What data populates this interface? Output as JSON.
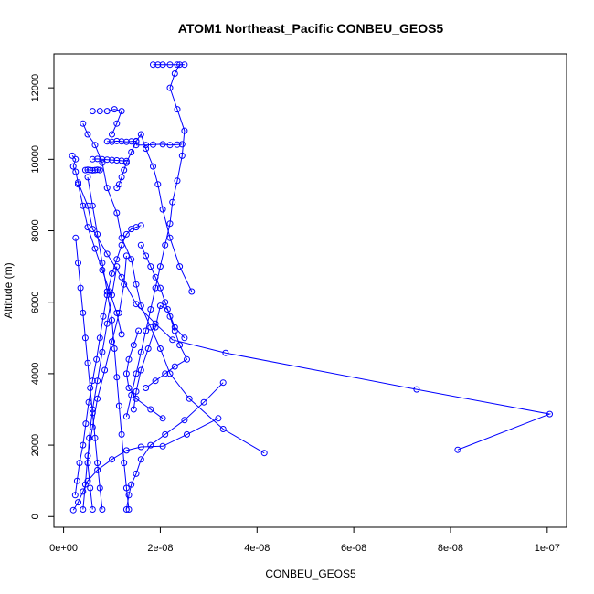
{
  "chart_data": {
    "type": "scatter",
    "title": "ATOM1 Northeast_Pacific CONBEU_GEOS5",
    "xlabel": "CONBEU_GEOS5",
    "ylabel": "Altitude (m)",
    "xlim": [
      -2e-09,
      1.04e-07
    ],
    "ylim": [
      -300,
      12950
    ],
    "x_ticks": [
      0,
      2e-08,
      4e-08,
      6e-08,
      8e-08,
      1e-07
    ],
    "x_tick_labels": [
      "0e+00",
      "2e-08",
      "4e-08",
      "6e-08",
      "8e-08",
      "1e-07"
    ],
    "y_ticks": [
      0,
      2000,
      4000,
      6000,
      8000,
      10000,
      12000
    ],
    "y_tick_labels": [
      "0",
      "2000",
      "4000",
      "6000",
      "8000",
      "10000",
      "12000"
    ],
    "grid": false,
    "legend": "none",
    "color": "#0000ff",
    "marker": "open-circle",
    "series": [
      {
        "x": [
          8.15e-08,
          1.005e-07,
          7.3e-08,
          3.35e-08,
          2.25e-08,
          1.9e-08,
          1.5e-08,
          1.2e-08,
          9e-09,
          6e-09,
          5e-09,
          3e-09,
          2.5e-09,
          2e-09,
          2.5e-09,
          1.8e-09
        ],
        "y": [
          1870,
          2870,
          3560,
          4580,
          4950,
          5400,
          5950,
          6700,
          7350,
          8050,
          8700,
          9350,
          9650,
          9800,
          10000,
          10100
        ]
      },
      {
        "x": [
          4.15e-08,
          3.3e-08,
          2.6e-08,
          2.2e-08,
          2e-08,
          1.8e-08,
          1.6e-08,
          1.5e-08,
          1.4e-08,
          1.2e-08,
          1.1e-08,
          9e-09,
          8e-09,
          6.5e-09,
          5e-09,
          4e-09
        ],
        "y": [
          1780,
          2450,
          3300,
          4000,
          4700,
          5300,
          5900,
          6500,
          7200,
          7800,
          8500,
          9200,
          9900,
          10400,
          10700,
          11000
        ]
      },
      {
        "x": [
          3.3e-08,
          2.9e-08,
          2.5e-08,
          2.1e-08,
          1.8e-08,
          1.6e-08,
          1.5e-08,
          1.4e-08,
          1.35e-08,
          1.3e-08
        ],
        "y": [
          3750,
          3200,
          2700,
          2300,
          2000,
          1600,
          1200,
          900,
          600,
          200
        ]
      },
      {
        "x": [
          2e-09,
          3e-09,
          4e-09,
          5e-09,
          7e-09,
          1e-08,
          1.3e-08,
          1.6e-08,
          2.05e-08,
          2.55e-08,
          3.2e-08
        ],
        "y": [
          180,
          400,
          700,
          1000,
          1300,
          1600,
          1850,
          1950,
          1970,
          2300,
          2750
        ]
      },
      {
        "x": [
          2.05e-08,
          1.8e-08,
          1.5e-08,
          1.35e-08,
          1.3e-08,
          1.35e-08,
          1.45e-08,
          1.55e-08
        ],
        "y": [
          2750,
          3000,
          3300,
          3600,
          4000,
          4400,
          4800,
          5200
        ]
      },
      {
        "x": [
          2.65e-08,
          2.4e-08,
          2.2e-08,
          2.05e-08,
          1.95e-08,
          1.85e-08,
          1.7e-08,
          1.6e-08,
          1.5e-08,
          1.4e-08,
          1.3e-08,
          1.25e-08,
          1.2e-08,
          1.15e-08,
          1.1e-08
        ],
        "y": [
          6300,
          7000,
          7800,
          8600,
          9300,
          9800,
          10300,
          10700,
          10500,
          10200,
          9900,
          9700,
          9500,
          9300,
          9200
        ]
      },
      {
        "x": [
          2.4e-09,
          2.8e-09,
          3.3e-09,
          4e-09,
          4.6e-09,
          5.2e-09,
          6e-09,
          6.8e-09,
          7.5e-09,
          8.2e-09,
          9e-09,
          1e-08,
          1.1e-08,
          1.2e-08,
          1.3e-08,
          1.4e-08,
          1.5e-08,
          1.6e-08
        ],
        "y": [
          600,
          1000,
          1500,
          2000,
          2600,
          3200,
          3800,
          4400,
          5000,
          5600,
          6200,
          6800,
          7200,
          7600,
          7900,
          8050,
          8100,
          8150
        ]
      },
      {
        "x": [
          1.35e-08,
          1.3e-08,
          1.25e-08,
          1.2e-08,
          1.15e-08,
          1.1e-08,
          1.05e-08,
          1e-08,
          9e-09,
          8e-09,
          7e-09,
          6e-09,
          5e-09
        ],
        "y": [
          200,
          800,
          1500,
          2300,
          3100,
          3900,
          4700,
          5500,
          6300,
          7100,
          7900,
          8700,
          9500
        ]
      },
      {
        "x": [
          6e-09,
          5.5e-09,
          5e-09,
          5.3e-09,
          6e-09,
          7e-09,
          8e-09,
          9e-09,
          1e-08,
          1.1e-08
        ],
        "y": [
          200,
          800,
          1500,
          2200,
          3000,
          3800,
          4600,
          5400,
          6200,
          7000
        ]
      },
      {
        "x": [
          4e-09,
          4.5e-09,
          5e-09,
          6e-09,
          7e-09,
          8.5e-09,
          1e-08,
          1.15e-08,
          1.25e-08,
          1.3e-08
        ],
        "y": [
          200,
          900,
          1700,
          2500,
          3300,
          4100,
          4900,
          5700,
          6500,
          7300
        ]
      },
      {
        "x": [
          1.85e-08,
          1.95e-08,
          2.05e-08,
          2.2e-08,
          2.35e-08,
          2.5e-08
        ],
        "y": [
          12650,
          12650,
          12650,
          12650,
          12650,
          12650
        ]
      },
      {
        "x": [
          1.5e-08,
          1.7e-08,
          1.85e-08,
          2.05e-08,
          2.2e-08,
          2.35e-08,
          2.45e-08
        ],
        "y": [
          10400,
          10400,
          10410,
          10420,
          10400,
          10410,
          10420
        ]
      },
      {
        "x": [
          6e-09,
          7e-09,
          8e-09,
          9e-09,
          1e-08,
          1.1e-08,
          1.2e-08,
          1.3e-08
        ],
        "y": [
          10000,
          10010,
          10000,
          9990,
          9980,
          9970,
          9960,
          9950
        ]
      },
      {
        "x": [
          4.5e-09,
          5e-09,
          5.5e-09,
          6e-09,
          6.5e-09,
          7e-09,
          7.5e-09
        ],
        "y": [
          9700,
          9710,
          9700,
          9690,
          9700,
          9710,
          9700
        ]
      },
      {
        "x": [
          9e-09,
          1e-08,
          1.1e-08,
          1.2e-08,
          1.3e-08,
          1.4e-08,
          1.5e-08
        ],
        "y": [
          10500,
          10490,
          10510,
          10500,
          10490,
          10500,
          10510
        ]
      },
      {
        "x": [
          6e-09,
          7.5e-09,
          9e-09,
          1.05e-08,
          1.2e-08,
          1.1e-08,
          1e-08
        ],
        "y": [
          11350,
          11350,
          11350,
          11400,
          11350,
          11000,
          10700
        ]
      },
      {
        "x": [
          2.4e-08,
          2.3e-08,
          2.2e-08,
          2.35e-08,
          2.5e-08,
          2.45e-08,
          2.35e-08,
          2.25e-08,
          2.2e-08,
          2.1e-08,
          2e-08,
          1.9e-08,
          1.8e-08,
          1.7e-08,
          1.6e-08,
          1.5e-08,
          1.4e-08,
          1.3e-08
        ],
        "y": [
          12650,
          12400,
          12000,
          11400,
          10800,
          10100,
          9400,
          8800,
          8200,
          7600,
          7000,
          6400,
          5800,
          5200,
          4600,
          4000,
          3400,
          2800
        ]
      },
      {
        "x": [
          1.45e-08,
          1.5e-08,
          1.6e-08,
          1.75e-08,
          1.9e-08,
          2e-08,
          2.15e-08,
          2.3e-08,
          2.5e-08
        ],
        "y": [
          3000,
          3500,
          4100,
          4700,
          5300,
          5900,
          5800,
          5300,
          5000
        ]
      },
      {
        "x": [
          2.5e-09,
          3e-09,
          3.5e-09,
          4e-09,
          4.5e-09,
          5e-09,
          5.5e-09,
          6e-09,
          6.5e-09,
          7e-09,
          7.5e-09,
          8e-09
        ],
        "y": [
          7800,
          7100,
          6400,
          5700,
          5000,
          4300,
          3600,
          2900,
          2200,
          1500,
          800,
          200
        ]
      },
      {
        "x": [
          3e-09,
          4e-09,
          5e-09,
          6.5e-09,
          8e-09,
          9.5e-09,
          1.1e-08,
          1.2e-08
        ],
        "y": [
          9300,
          8700,
          8100,
          7500,
          6900,
          6300,
          5700,
          5100
        ]
      },
      {
        "x": [
          1.6e-08,
          1.7e-08,
          1.8e-08,
          1.9e-08,
          2e-08,
          2.1e-08,
          2.2e-08,
          2.3e-08,
          2.4e-08,
          2.55e-08,
          2.3e-08,
          2.1e-08,
          1.9e-08,
          1.7e-08
        ],
        "y": [
          7600,
          7300,
          7000,
          6700,
          6400,
          6000,
          5600,
          5200,
          4800,
          4400,
          4200,
          4000,
          3800,
          3600
        ]
      }
    ]
  }
}
